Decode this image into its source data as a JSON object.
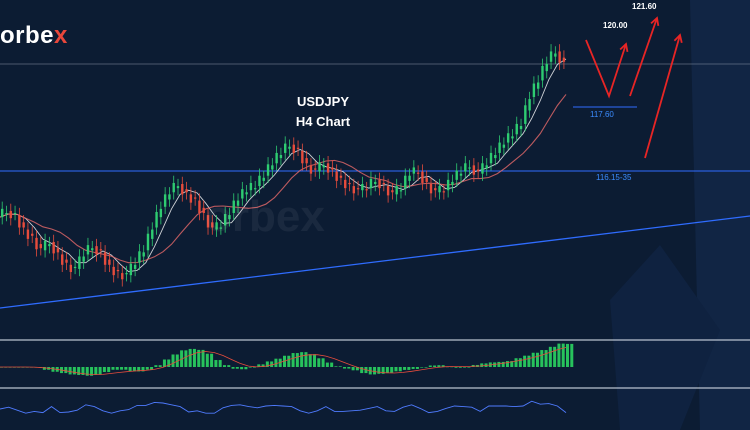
{
  "logo": {
    "text_main": "orbe",
    "text_accent": "x"
  },
  "watermark": "orbex",
  "title": {
    "line1": "USDJPY",
    "line2": "H4 Chart"
  },
  "annotations": {
    "t1": "120.00",
    "t2": "121.60",
    "support": "117.60",
    "zone": "116.15-35"
  },
  "colors": {
    "background": "#0c1c33",
    "bull": "#2ecc71",
    "bear": "#e74c3c",
    "level_line": "#2f6cff",
    "trend_line": "#2f6cff",
    "projection_arrow": "#e82525",
    "ma_fast": "#ffffff",
    "ma_slow": "#e86a6a",
    "macd_hist": "#27c25c",
    "rsi": "#4f7bff"
  },
  "chart_data": {
    "type": "candlestick",
    "symbol": "USDJPY",
    "timeframe": "H4",
    "title": "USDJPY H4 Chart",
    "levels": {
      "resistance_zone": "116.15-35",
      "support": 117.6,
      "targets": [
        120.0,
        121.6
      ]
    },
    "close_series": [
      112.0,
      112.3,
      112.1,
      111.4,
      111.0,
      110.4,
      110.8,
      110.2,
      109.7,
      109.5,
      110.2,
      110.6,
      110.3,
      109.6,
      109.3,
      109.2,
      109.8,
      110.4,
      111.5,
      112.5,
      113.2,
      113.6,
      113.1,
      112.8,
      112.1,
      111.4,
      111.6,
      112.2,
      112.9,
      113.3,
      113.5,
      114.0,
      114.6,
      115.1,
      115.5,
      115.2,
      114.5,
      114.2,
      114.6,
      114.2,
      113.8,
      113.5,
      113.3,
      113.4,
      113.8,
      113.5,
      113.1,
      113.4,
      114.1,
      114.2,
      113.6,
      113.2,
      113.3,
      113.8,
      114.2,
      114.5,
      114.1,
      114.6,
      115.1,
      115.6,
      116.0,
      116.5,
      117.8,
      118.6,
      119.5,
      120.0,
      119.4
    ]
  }
}
